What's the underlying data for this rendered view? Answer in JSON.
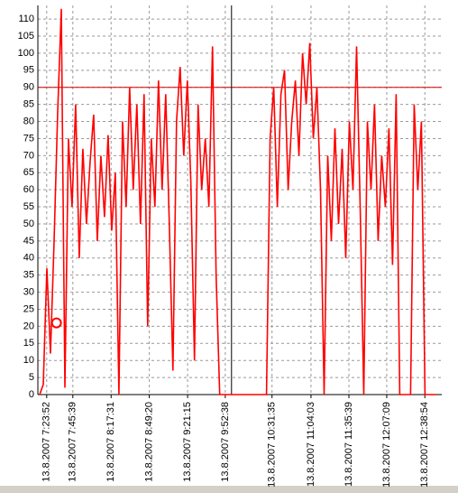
{
  "chart_data": {
    "type": "line",
    "series": [
      {
        "color": "#ff0000",
        "x": [
          "13.8.2007 7:18:00",
          "13.8.2007 7:21:00",
          "13.8.2007 7:24:00",
          "13.8.2007 7:27:00",
          "13.8.2007 7:30:00",
          "13.8.2007 7:33:00",
          "13.8.2007 7:36:00",
          "13.8.2007 7:39:00",
          "13.8.2007 7:42:00",
          "13.8.2007 7:45:00",
          "13.8.2007 7:48:00",
          "13.8.2007 7:51:00",
          "13.8.2007 7:54:00",
          "13.8.2007 7:57:00",
          "13.8.2007 8:00:00",
          "13.8.2007 8:03:00",
          "13.8.2007 8:06:00",
          "13.8.2007 8:09:00",
          "13.8.2007 8:12:00",
          "13.8.2007 8:15:00",
          "13.8.2007 8:18:00",
          "13.8.2007 8:21:00",
          "13.8.2007 8:24:00",
          "13.8.2007 8:27:00",
          "13.8.2007 8:30:00",
          "13.8.2007 8:33:00",
          "13.8.2007 8:36:00",
          "13.8.2007 8:39:00",
          "13.8.2007 8:42:00",
          "13.8.2007 8:45:00",
          "13.8.2007 8:48:00",
          "13.8.2007 8:51:00",
          "13.8.2007 8:54:00",
          "13.8.2007 8:57:00",
          "13.8.2007 9:00:00",
          "13.8.2007 9:03:00",
          "13.8.2007 9:06:00",
          "13.8.2007 9:09:00",
          "13.8.2007 9:12:00",
          "13.8.2007 9:15:00",
          "13.8.2007 9:18:00",
          "13.8.2007 9:21:00",
          "13.8.2007 9:24:00",
          "13.8.2007 9:27:00",
          "13.8.2007 9:30:00",
          "13.8.2007 9:33:00",
          "13.8.2007 9:36:00",
          "13.8.2007 9:39:00",
          "13.8.2007 9:42:00",
          "13.8.2007 9:45:00",
          "13.8.2007 9:48:00",
          "13.8.2007 9:51:00",
          "13.8.2007 9:54:00",
          "13.8.2007 9:57:00",
          "13.8.2007 10:00:00",
          "13.8.2007 10:03:00",
          "13.8.2007 10:06:00",
          "13.8.2007 10:09:00",
          "13.8.2007 10:12:00",
          "13.8.2007 10:15:00",
          "13.8.2007 10:18:00",
          "13.8.2007 10:21:00",
          "13.8.2007 10:24:00",
          "13.8.2007 10:27:00",
          "13.8.2007 10:30:00",
          "13.8.2007 10:33:00",
          "13.8.2007 10:36:00",
          "13.8.2007 10:39:00",
          "13.8.2007 10:42:00",
          "13.8.2007 10:45:00",
          "13.8.2007 10:48:00",
          "13.8.2007 10:51:00",
          "13.8.2007 10:54:00",
          "13.8.2007 10:57:00",
          "13.8.2007 11:00:00",
          "13.8.2007 11:03:00",
          "13.8.2007 11:06:00",
          "13.8.2007 11:09:00",
          "13.8.2007 11:12:00",
          "13.8.2007 11:15:00",
          "13.8.2007 11:18:00",
          "13.8.2007 11:21:00",
          "13.8.2007 11:24:00",
          "13.8.2007 11:27:00",
          "13.8.2007 11:30:00",
          "13.8.2007 11:33:00",
          "13.8.2007 11:36:00",
          "13.8.2007 11:39:00",
          "13.8.2007 11:42:00",
          "13.8.2007 11:45:00",
          "13.8.2007 11:48:00",
          "13.8.2007 11:51:00",
          "13.8.2007 11:54:00",
          "13.8.2007 11:57:00",
          "13.8.2007 12:00:00",
          "13.8.2007 12:03:00",
          "13.8.2007 12:06:00",
          "13.8.2007 12:09:00",
          "13.8.2007 12:12:00",
          "13.8.2007 12:15:00",
          "13.8.2007 12:18:00",
          "13.8.2007 12:21:00",
          "13.8.2007 12:24:00",
          "13.8.2007 12:27:00",
          "13.8.2007 12:30:00",
          "13.8.2007 12:33:00",
          "13.8.2007 12:36:00",
          "13.8.2007 12:39:00",
          "13.8.2007 12:42:00",
          "13.8.2007 12:45:00",
          "13.8.2007 12:48:00"
        ],
        "values": [
          0,
          3,
          37,
          12,
          45,
          83,
          113,
          2,
          75,
          55,
          85,
          40,
          72,
          50,
          68,
          82,
          45,
          70,
          52,
          76,
          48,
          65,
          0,
          80,
          55,
          90,
          60,
          85,
          50,
          88,
          20,
          75,
          55,
          92,
          60,
          88,
          50,
          7,
          80,
          96,
          70,
          92,
          62,
          10,
          85,
          60,
          75,
          55,
          102,
          35,
          0,
          0,
          0,
          0,
          0,
          0,
          0,
          0,
          0,
          0,
          0,
          0,
          0,
          0,
          75,
          90,
          55,
          88,
          95,
          60,
          80,
          92,
          70,
          100,
          85,
          103,
          75,
          90,
          60,
          0,
          70,
          45,
          78,
          50,
          72,
          40,
          80,
          60,
          102,
          55,
          0,
          80,
          60,
          85,
          45,
          70,
          55,
          78,
          38,
          88,
          0,
          0,
          0,
          0,
          85,
          60,
          80,
          0,
          0,
          0,
          0
        ]
      }
    ],
    "xlim": [
      "13.8.2007 7:16:30",
      "13.8.2007 12:53:00"
    ],
    "xticks": [
      "13.8.2007 7:23:52",
      "13.8.2007 7:45:39",
      "13.8.2007 8:17:31",
      "13.8.2007 8:49:20",
      "13.8.2007 9:21:15",
      "13.8.2007 9:52:38",
      "13.8.2007 10:31:35",
      "13.8.2007 11:04:03",
      "13.8.2007 11:35:39",
      "13.8.2007 12:07:09",
      "13.8.2007 12:38:54"
    ],
    "ylim": [
      0,
      114
    ],
    "yticks": [
      0,
      5,
      10,
      15,
      20,
      25,
      30,
      35,
      40,
      45,
      50,
      55,
      60,
      65,
      70,
      75,
      80,
      85,
      90,
      95,
      100,
      105,
      110
    ],
    "grid": true,
    "threshold": {
      "value": 90,
      "color": "#cc0000"
    },
    "cursor": {
      "x": "13.8.2007 9:57:50",
      "color": "#000000"
    },
    "marker": {
      "x": "13.8.2007 7:32:00",
      "y": 21,
      "color": "#ff0000"
    }
  }
}
